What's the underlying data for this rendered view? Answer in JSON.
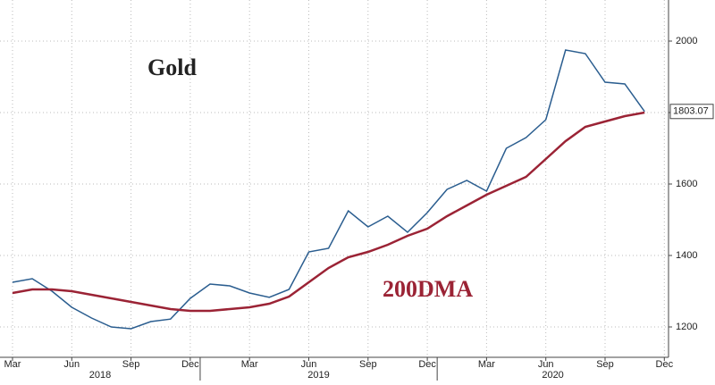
{
  "chart_data": {
    "type": "line",
    "title": "Gold",
    "x": [
      "2018-03",
      "2018-04",
      "2018-05",
      "2018-06",
      "2018-07",
      "2018-08",
      "2018-09",
      "2018-10",
      "2018-11",
      "2018-12",
      "2019-01",
      "2019-02",
      "2019-03",
      "2019-04",
      "2019-05",
      "2019-06",
      "2019-07",
      "2019-08",
      "2019-09",
      "2019-10",
      "2019-11",
      "2019-12",
      "2020-01",
      "2020-02",
      "2020-03",
      "2020-04",
      "2020-05",
      "2020-06",
      "2020-07",
      "2020-08",
      "2020-09",
      "2020-10",
      "2020-11"
    ],
    "series": [
      {
        "name": "Gold",
        "color": "#2a5d8f",
        "values": [
          1325,
          1335,
          1300,
          1255,
          1225,
          1200,
          1195,
          1215,
          1222,
          1280,
          1320,
          1315,
          1295,
          1283,
          1305,
          1410,
          1420,
          1525,
          1480,
          1510,
          1465,
          1520,
          1585,
          1610,
          1580,
          1700,
          1730,
          1780,
          1975,
          1965,
          1885,
          1880,
          1803.07
        ]
      },
      {
        "name": "200DMA",
        "color": "#9b2335",
        "values": [
          1295,
          1305,
          1305,
          1300,
          1290,
          1280,
          1270,
          1260,
          1250,
          1245,
          1245,
          1250,
          1255,
          1265,
          1285,
          1325,
          1365,
          1395,
          1410,
          1430,
          1455,
          1475,
          1510,
          1540,
          1570,
          1595,
          1620,
          1670,
          1720,
          1760,
          1775,
          1790,
          1800
        ]
      }
    ],
    "ylim": [
      1115,
      2115
    ],
    "yticks": [
      1200,
      1400,
      1600,
      1800,
      2000
    ],
    "xticks": [
      {
        "value": "2018-03",
        "label": "Mar"
      },
      {
        "value": "2018-06",
        "label": "Jun"
      },
      {
        "value": "2018-09",
        "label": "Sep"
      },
      {
        "value": "2018-12",
        "label": "Dec"
      },
      {
        "value": "2019-03",
        "label": "Mar"
      },
      {
        "value": "2019-06",
        "label": "Jun"
      },
      {
        "value": "2019-09",
        "label": "Sep"
      },
      {
        "value": "2019-12",
        "label": "Dec"
      },
      {
        "value": "2020-03",
        "label": "Mar"
      },
      {
        "value": "2020-06",
        "label": "Jun"
      },
      {
        "value": "2020-09",
        "label": "Sep"
      },
      {
        "value": "2020-12",
        "label": "Dec"
      }
    ],
    "years": [
      "2018",
      "2019",
      "2020"
    ],
    "grid": true
  }
}
